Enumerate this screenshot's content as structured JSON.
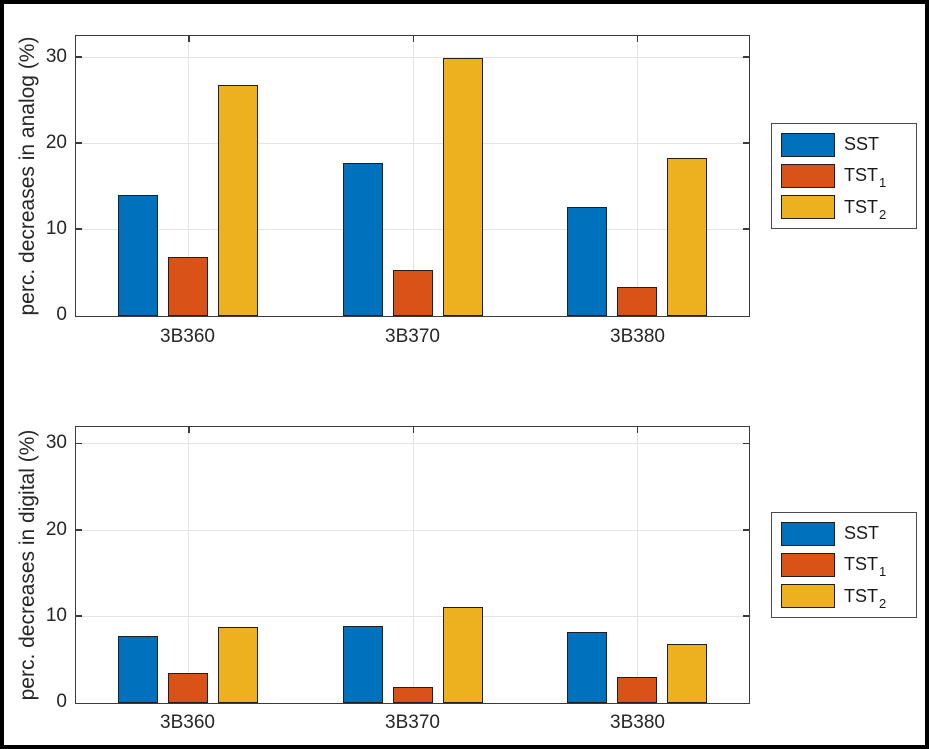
{
  "figure": {
    "background": "#ffffff",
    "border_color": "#000000"
  },
  "styles": {
    "grid_color": "#e4e4e4",
    "axis_color": "#3b3b3b",
    "text_color": "#262626",
    "bar_edge_color": "#1f1f1f"
  },
  "chart_data": [
    {
      "id": "analog",
      "type": "bar",
      "title": "",
      "xlabel": "",
      "ylabel": "perc. decreases in analog (%)",
      "categories": [
        "3B360",
        "3B370",
        "3B380"
      ],
      "series": [
        {
          "name": "SST",
          "label": "SST",
          "sub": "",
          "color": "#0072BD",
          "values": [
            14.0,
            17.8,
            12.6
          ]
        },
        {
          "name": "TST_1",
          "label": "TST",
          "sub": "1",
          "color": "#D95319",
          "values": [
            6.9,
            5.3,
            3.4
          ]
        },
        {
          "name": "TST_2",
          "label": "TST",
          "sub": "2",
          "color": "#EDB120",
          "values": [
            26.8,
            30.0,
            18.3
          ]
        }
      ],
      "ylim": [
        0,
        32.5
      ],
      "yticks": [
        0,
        10,
        20,
        30
      ],
      "grid": true,
      "legend_position": "right-outside"
    },
    {
      "id": "digital",
      "type": "bar",
      "title": "",
      "xlabel": "",
      "ylabel": "perc. decreases in digital (%)",
      "categories": [
        "3B360",
        "3B370",
        "3B380"
      ],
      "series": [
        {
          "name": "SST",
          "label": "SST",
          "sub": "",
          "color": "#0072BD",
          "values": [
            7.8,
            8.9,
            8.2
          ]
        },
        {
          "name": "TST_1",
          "label": "TST",
          "sub": "1",
          "color": "#D95319",
          "values": [
            3.5,
            1.9,
            3.0
          ]
        },
        {
          "name": "TST_2",
          "label": "TST",
          "sub": "2",
          "color": "#EDB120",
          "values": [
            8.8,
            11.1,
            6.9
          ]
        }
      ],
      "ylim": [
        0,
        32
      ],
      "yticks": [
        0,
        10,
        20,
        30
      ],
      "grid": true,
      "legend_position": "right-outside"
    }
  ]
}
